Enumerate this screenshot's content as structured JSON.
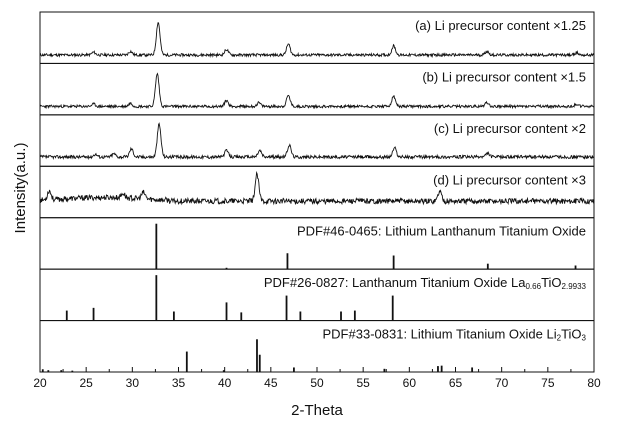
{
  "chart_data": {
    "type": "line",
    "xlabel": "2-Theta",
    "ylabel": "Intensity(a.u.)",
    "xlim": [
      20,
      80
    ],
    "x_ticks": [
      20,
      25,
      30,
      35,
      40,
      45,
      50,
      55,
      60,
      65,
      70,
      75,
      80
    ],
    "panels": [
      {
        "kind": "xrd",
        "label": "(a) Li precursor content ×1.25",
        "baseline": 0.12,
        "noise": 0.03,
        "seed": 11,
        "peaks": [
          [
            25.8,
            0.06
          ],
          [
            29.8,
            0.08
          ],
          [
            32.8,
            0.72
          ],
          [
            40.2,
            0.12
          ],
          [
            46.9,
            0.24
          ],
          [
            58.3,
            0.2
          ],
          [
            68.4,
            0.08
          ],
          [
            78.1,
            0.05
          ]
        ]
      },
      {
        "kind": "xrd",
        "label": "(b) Li precursor content ×1.5",
        "baseline": 0.12,
        "noise": 0.03,
        "seed": 23,
        "peaks": [
          [
            25.8,
            0.05
          ],
          [
            29.8,
            0.07
          ],
          [
            32.7,
            0.72
          ],
          [
            40.2,
            0.13
          ],
          [
            43.7,
            0.08
          ],
          [
            46.9,
            0.24
          ],
          [
            58.3,
            0.22
          ],
          [
            68.4,
            0.09
          ],
          [
            78.1,
            0.05
          ]
        ]
      },
      {
        "kind": "xrd",
        "label": "(c) Li precursor content ×2",
        "baseline": 0.14,
        "noise": 0.035,
        "seed": 37,
        "peaks": [
          [
            26.0,
            0.06
          ],
          [
            28.0,
            0.07
          ],
          [
            29.9,
            0.18
          ],
          [
            32.9,
            0.72
          ],
          [
            40.2,
            0.14
          ],
          [
            43.8,
            0.14
          ],
          [
            47.0,
            0.26
          ],
          [
            58.4,
            0.2
          ],
          [
            68.5,
            0.08
          ]
        ]
      },
      {
        "kind": "xrd",
        "label": "(d) Li precursor content ×3",
        "baseline": 0.3,
        "noise": 0.06,
        "seed": 53,
        "peaks": [
          [
            21.0,
            0.2
          ],
          [
            29.0,
            0.1
          ],
          [
            31.2,
            0.14
          ],
          [
            43.5,
            0.58
          ],
          [
            63.3,
            0.22
          ]
        ]
      },
      {
        "kind": "sticks",
        "label": "PDF#46-0465: Lithium Lanthanum Titanium Oxide",
        "sticks": [
          [
            32.6,
            1.0
          ],
          [
            46.8,
            0.35
          ],
          [
            58.3,
            0.3
          ],
          [
            68.5,
            0.12
          ],
          [
            78.0,
            0.08
          ],
          [
            40.2,
            0.03
          ]
        ]
      },
      {
        "kind": "sticks",
        "label": "PDF#26-0827: Lanthanum Titanium Oxide  La",
        "formula": [
          {
            "text": "PDF#26-0827: Lanthanum Titanium Oxide  La",
            "sub": false
          },
          {
            "text": "0.66",
            "sub": true
          },
          {
            "text": "TiO",
            "sub": false
          },
          {
            "text": "2.9933",
            "sub": true
          }
        ],
        "sticks": [
          [
            22.9,
            0.22
          ],
          [
            25.8,
            0.28
          ],
          [
            32.6,
            1.0
          ],
          [
            34.5,
            0.2
          ],
          [
            40.2,
            0.4
          ],
          [
            41.8,
            0.18
          ],
          [
            46.7,
            0.55
          ],
          [
            48.2,
            0.2
          ],
          [
            52.6,
            0.2
          ],
          [
            54.1,
            0.22
          ],
          [
            58.2,
            0.55
          ]
        ]
      },
      {
        "kind": "sticks",
        "label": "PDF#33-0831: Lithium Titanium Oxide Li",
        "formula": [
          {
            "text": "PDF#33-0831: Lithium Titanium Oxide Li",
            "sub": false
          },
          {
            "text": "2",
            "sub": true
          },
          {
            "text": "TiO",
            "sub": false
          },
          {
            "text": "3",
            "sub": true
          }
        ],
        "sticks": [
          [
            20.3,
            0.06
          ],
          [
            20.9,
            0.04
          ],
          [
            22.3,
            0.04
          ],
          [
            23.5,
            0.03
          ],
          [
            35.9,
            0.45
          ],
          [
            39.9,
            0.04
          ],
          [
            43.5,
            0.72
          ],
          [
            43.8,
            0.38
          ],
          [
            47.5,
            0.1
          ],
          [
            57.3,
            0.07
          ],
          [
            63.1,
            0.13
          ],
          [
            63.5,
            0.14
          ],
          [
            66.8,
            0.1
          ]
        ]
      }
    ]
  }
}
